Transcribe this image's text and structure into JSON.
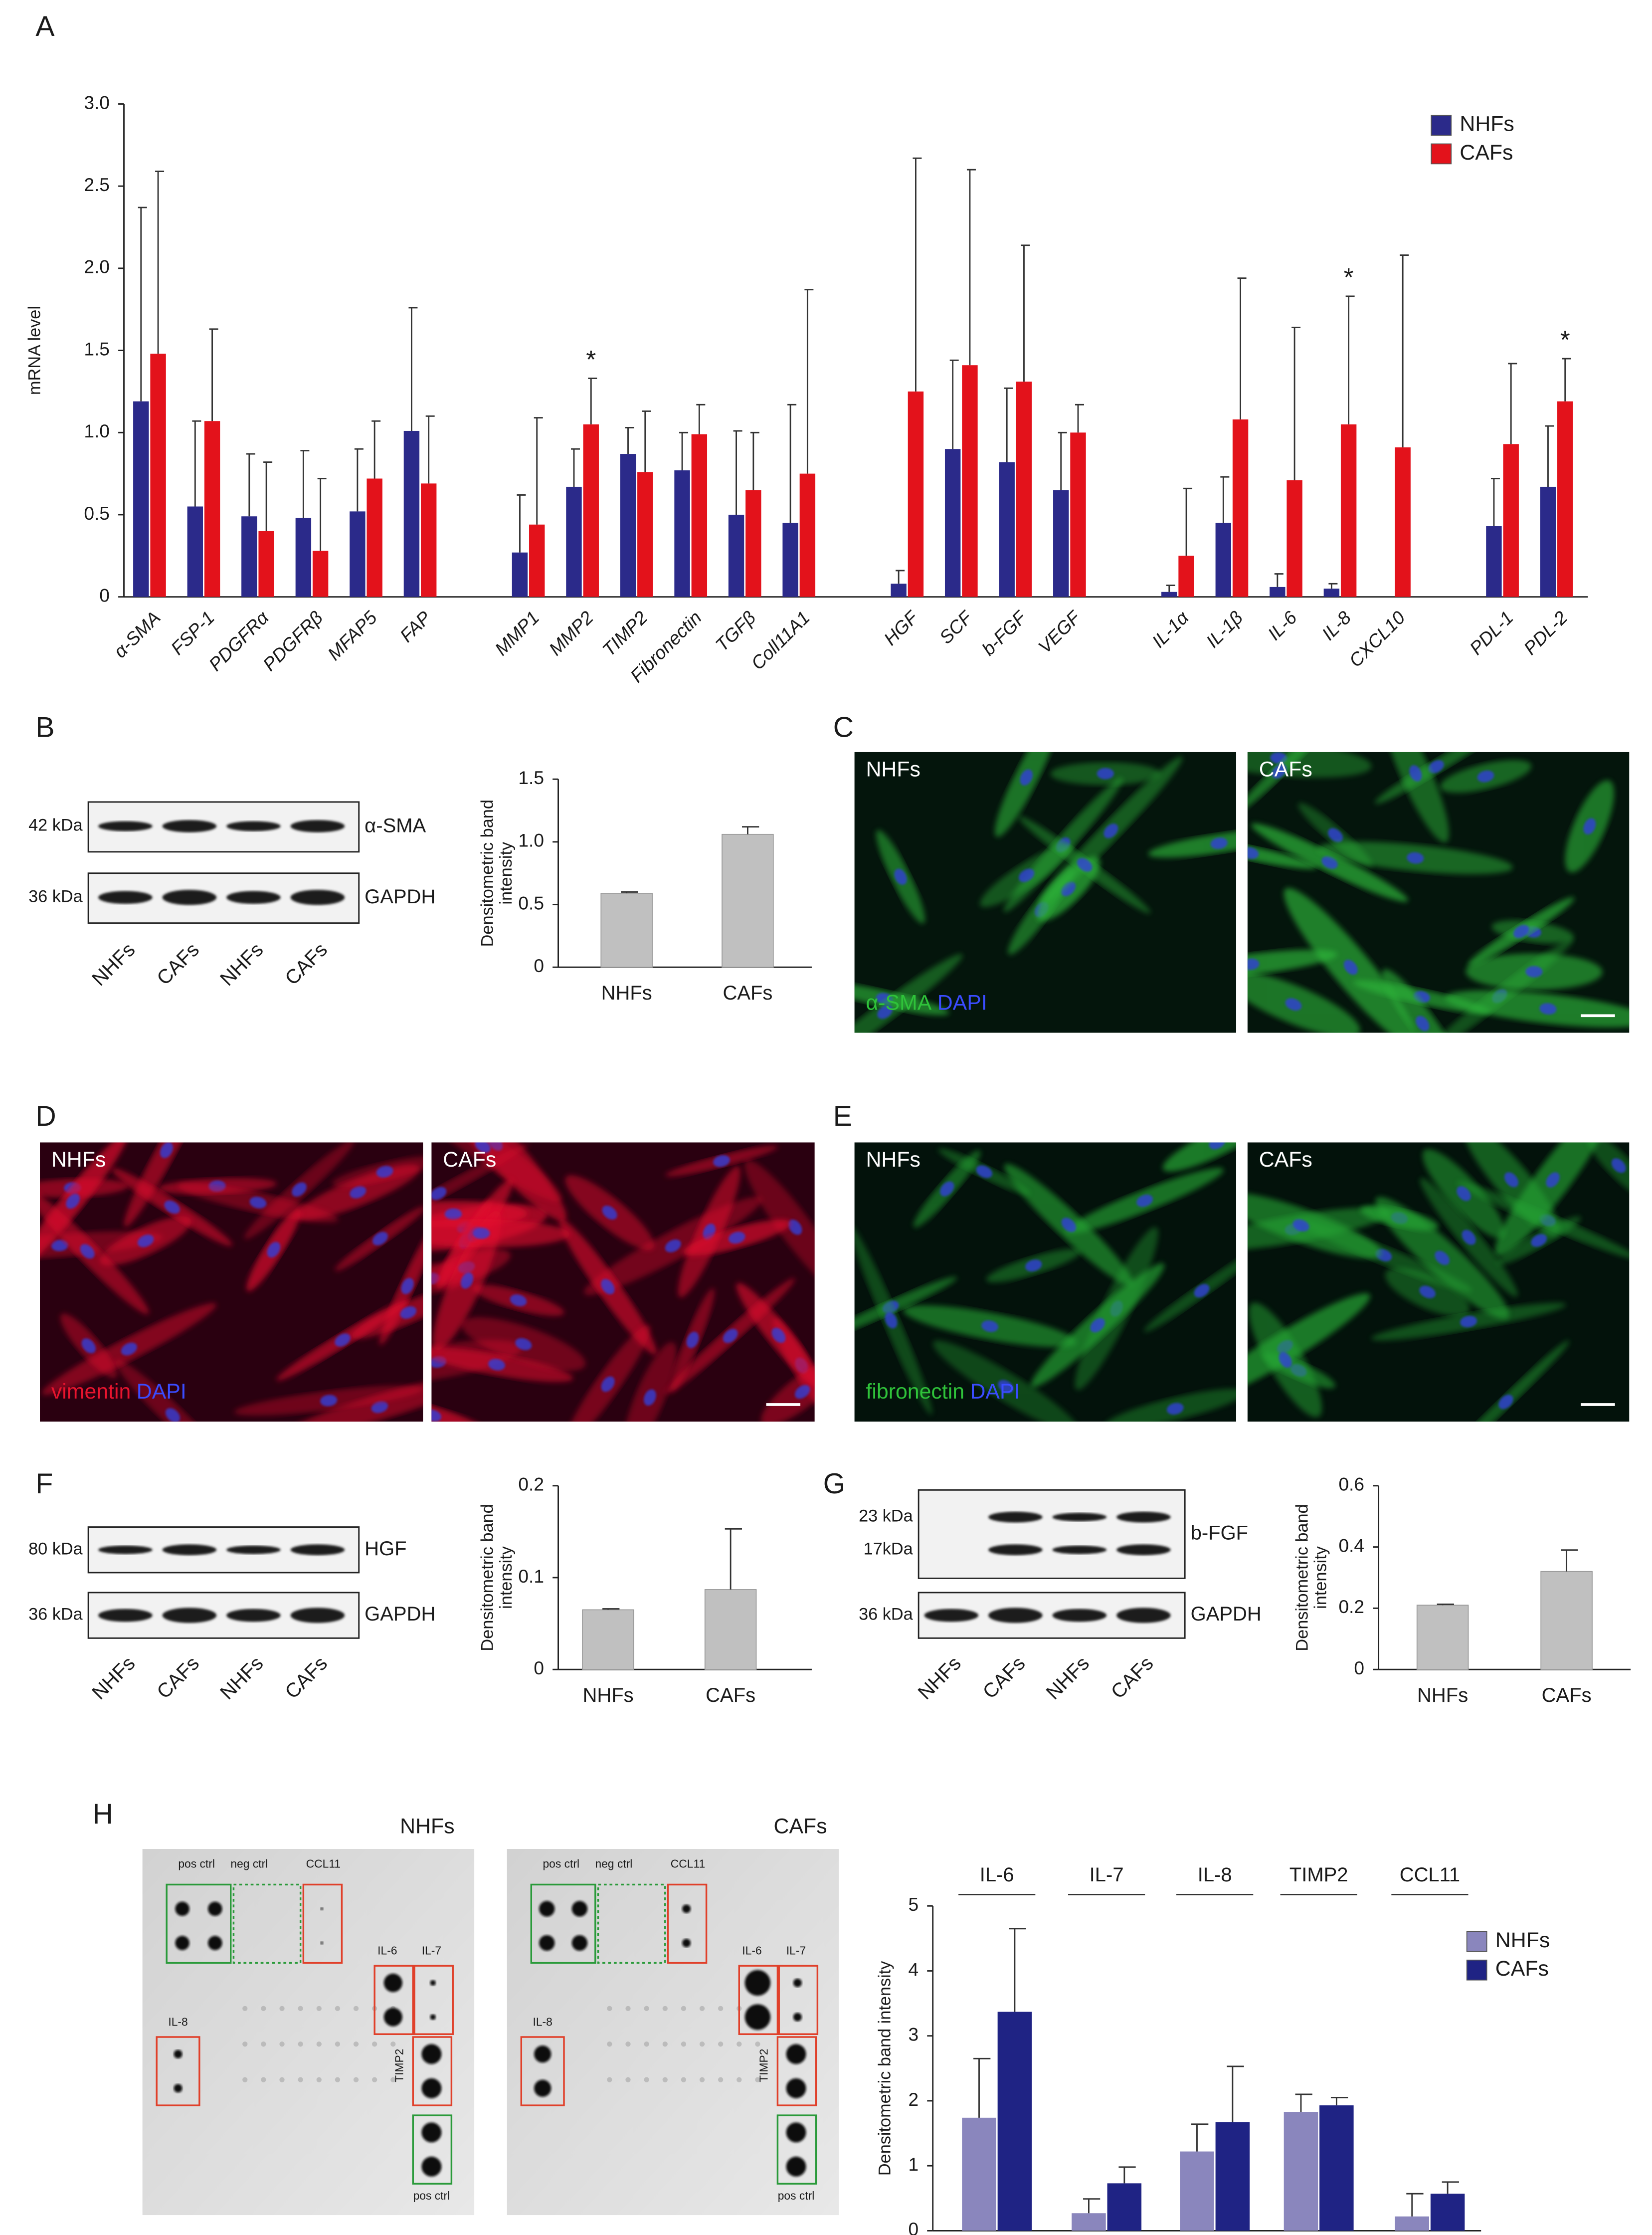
{
  "panel_letters": [
    "A",
    "B",
    "C",
    "D",
    "E",
    "F",
    "G",
    "H"
  ],
  "chart_data": [
    {
      "type": "bar",
      "y_label": "mRNA level",
      "categories": [
        "α-SMA",
        "FSP-1",
        "PDGFRα",
        "PDGFRβ",
        "MFAP5",
        "FAP",
        "MMP1",
        "MMP2",
        "TIMP2",
        "Fibronectin",
        "TGFβ",
        "Coll11A1",
        "HGF",
        "SCF",
        "b-FGF",
        "VEGF",
        "IL-1α",
        "IL-1β",
        "IL-6",
        "IL-8",
        "CXCL10",
        "PDL-1",
        "PDL-2"
      ],
      "series": [
        {
          "name": "NHFs",
          "color": "#2b2a8a",
          "values": [
            1.19,
            0.55,
            0.49,
            0.48,
            0.52,
            1.01,
            0.27,
            0.67,
            0.87,
            0.77,
            0.5,
            0.45,
            0.08,
            0.9,
            0.82,
            0.65,
            0.03,
            0.45,
            0.06,
            0.05,
            0,
            0.43,
            0.67
          ],
          "errors": [
            1.18,
            0.52,
            0.38,
            0.41,
            0.38,
            0.75,
            0.35,
            0.23,
            0.16,
            0.23,
            0.51,
            0.72,
            0.08,
            0.54,
            0.45,
            0.35,
            0.04,
            0.28,
            0.08,
            0.03,
            null,
            0.29,
            0.37
          ]
        },
        {
          "name": "CAFs",
          "color": "#e3121b",
          "values": [
            1.48,
            1.07,
            0.4,
            0.28,
            0.72,
            0.69,
            0.44,
            1.05,
            0.76,
            0.99,
            0.65,
            0.75,
            1.25,
            1.41,
            1.31,
            1.0,
            0.25,
            1.08,
            0.71,
            1.05,
            0.91,
            0.93,
            1.19
          ],
          "errors": [
            1.11,
            0.56,
            0.42,
            0.44,
            0.35,
            0.41,
            0.65,
            0.28,
            0.37,
            0.18,
            0.35,
            1.12,
            1.42,
            1.19,
            0.83,
            0.17,
            0.41,
            0.86,
            0.93,
            0.78,
            1.17,
            0.49,
            0.26
          ]
        }
      ],
      "annotations": [
        {
          "text": "*",
          "category": "MMP2"
        },
        {
          "text": "*",
          "category": "IL-8"
        },
        {
          "text": "*",
          "category": "PDL-2"
        }
      ],
      "ylim": [
        0,
        3
      ],
      "yticks": [
        0,
        0.5,
        {
          "value": 1,
          "label": "1.0"
        },
        1.5,
        {
          "value": 2,
          "label": "2.0"
        },
        2.5,
        {
          "value": 3,
          "label": "3.0"
        }
      ],
      "legend": "upper right"
    },
    {
      "type": "bar",
      "y_label": [
        "Densitometric band",
        "intensity"
      ],
      "categories": [
        "NHFs",
        "CAFs"
      ],
      "values": [
        0.59,
        1.06
      ],
      "errors": [
        0.01,
        0.06
      ],
      "color": "#c0c0c0",
      "ylim": [
        0,
        1.5
      ],
      "yticks": [
        0,
        0.5,
        {
          "value": 1,
          "label": "1.0"
        },
        1.5
      ]
    },
    {
      "type": "bar",
      "y_label": [
        "Densitometric band",
        "intensity"
      ],
      "categories": [
        "NHFs",
        "CAFs"
      ],
      "values": [
        0.065,
        0.087
      ],
      "errors": [
        0.001,
        0.066
      ],
      "color": "#c0c0c0",
      "ylim": [
        0,
        0.2
      ],
      "yticks": [
        0,
        0.1,
        0.2
      ]
    },
    {
      "type": "bar",
      "y_label": [
        "Densitometric band",
        "intensity"
      ],
      "categories": [
        "NHFs",
        "CAFs"
      ],
      "values": [
        0.21,
        0.32
      ],
      "errors": [
        0.003,
        0.07
      ],
      "color": "#c0c0c0",
      "ylim": [
        0,
        0.6
      ],
      "yticks": [
        0,
        0.2,
        0.4,
        0.6
      ]
    },
    {
      "type": "bar",
      "y_label": "Densitometric band intensity",
      "categories": [
        "IL-6",
        "IL-7",
        "IL-8",
        "TIMP2",
        "CCL11"
      ],
      "series": [
        {
          "name": "NHFs",
          "color": "#8a86bd",
          "values": [
            1.74,
            0.27,
            1.22,
            1.83,
            0.22
          ],
          "errors": [
            0.91,
            0.22,
            0.42,
            0.27,
            0.35
          ]
        },
        {
          "name": "CAFs",
          "color": "#1f2384",
          "values": [
            3.37,
            0.73,
            1.67,
            1.93,
            0.57
          ],
          "errors": [
            1.28,
            0.25,
            0.86,
            0.12,
            0.18
          ]
        }
      ],
      "ylim": [
        0,
        5
      ],
      "yticks": [
        0,
        1,
        2,
        3,
        4,
        5
      ],
      "legend": "upper right"
    }
  ],
  "blots": [
    {
      "lanes": [
        "NHFs",
        "CAFs",
        "NHFs",
        "CAFs"
      ],
      "rows": [
        {
          "kDa": [
            "42 kDa"
          ],
          "protein": "α-SMA"
        },
        {
          "kDa": [
            "36 kDa"
          ],
          "protein": "GAPDH"
        }
      ]
    },
    {
      "lanes": [
        "NHFs",
        "CAFs",
        "NHFs",
        "CAFs"
      ],
      "rows": [
        {
          "kDa": [
            "80 kDa"
          ],
          "protein": "HGF"
        },
        {
          "kDa": [
            "36 kDa"
          ],
          "protein": "GAPDH"
        }
      ]
    },
    {
      "lanes": [
        "NHFs",
        "CAFs",
        "NHFs",
        "CAFs"
      ],
      "rows": [
        {
          "kDa": [
            "23 kDa",
            "17kDa"
          ],
          "protein": "b-FGF"
        },
        {
          "kDa": [
            "36 kDa"
          ],
          "protein": "GAPDH"
        }
      ]
    }
  ],
  "micrographs": [
    {
      "left": "NHFs",
      "right": "CAFs",
      "stain": "α-SMA",
      "counterstain": "DAPI"
    },
    {
      "left": "NHFs",
      "right": "CAFs",
      "stain": "vimentin",
      "counterstain": "DAPI"
    },
    {
      "left": "NHFs",
      "right": "CAFs",
      "stain": "fibronectin",
      "counterstain": "DAPI"
    }
  ],
  "arrays": [
    {
      "title": "NHFs",
      "labels": [
        "pos ctrl",
        "neg ctrl",
        "CCL11",
        "IL-6",
        "IL-7",
        "IL-8",
        "TIMP2",
        "pos ctrl"
      ]
    },
    {
      "title": "CAFs",
      "labels": [
        "pos ctrl",
        "neg ctrl",
        "CCL11",
        "IL-6",
        "IL-7",
        "IL-8",
        "TIMP2",
        "pos ctrl"
      ]
    }
  ]
}
